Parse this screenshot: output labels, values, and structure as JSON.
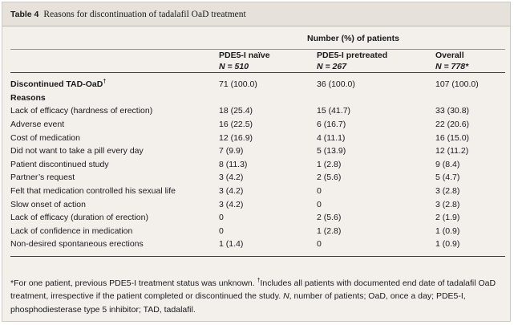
{
  "caption": {
    "label": "Table 4",
    "text": "Reasons for discontinuation of tadalafil OaD treatment"
  },
  "header": {
    "group_label": "Number (%) of patients",
    "columns": [
      {
        "name": "PDE5-I naïve",
        "n": "N = 510"
      },
      {
        "name": "PDE5-I pretreated",
        "n": "N = 267"
      },
      {
        "name": "Overall",
        "n": "N = 778*"
      }
    ]
  },
  "discontinued": {
    "label": "Discontinued TAD-OaD",
    "mark": "†",
    "values": [
      "71 (100.0)",
      "36 (100.0)",
      "107 (100.0)"
    ]
  },
  "reasons_heading": "Reasons",
  "rows": [
    {
      "label": "Lack of efficacy (hardness of erection)",
      "values": [
        "18 (25.4)",
        "15 (41.7)",
        "33 (30.8)"
      ]
    },
    {
      "label": "Adverse event",
      "values": [
        "16 (22.5)",
        "6 (16.7)",
        "22 (20.6)"
      ]
    },
    {
      "label": "Cost of medication",
      "values": [
        "12 (16.9)",
        "4 (11.1)",
        "16 (15.0)"
      ]
    },
    {
      "label": "Did not want to take a pill every day",
      "values": [
        "7 (9.9)",
        "5 (13.9)",
        "12 (11.2)"
      ]
    },
    {
      "label": "Patient discontinued study",
      "values": [
        "8 (11.3)",
        "1 (2.8)",
        "9 (8.4)"
      ]
    },
    {
      "label": "Partner’s request",
      "values": [
        "3 (4.2)",
        "2 (5.6)",
        "5 (4.7)"
      ]
    },
    {
      "label": "Felt that medication controlled his sexual life",
      "values": [
        "3 (4.2)",
        "0",
        "3 (2.8)"
      ]
    },
    {
      "label": "Slow onset of action",
      "values": [
        "3 (4.2)",
        "0",
        "3 (2.8)"
      ]
    },
    {
      "label": "Lack of efficacy (duration of erection)",
      "values": [
        "0",
        "2 (5.6)",
        "2 (1.9)"
      ]
    },
    {
      "label": "Lack of confidence in medication",
      "values": [
        "0",
        "1 (2.8)",
        "1 (0.9)"
      ]
    },
    {
      "label": "Non-desired spontaneous erections",
      "values": [
        "1 (1.4)",
        "0",
        "1 (0.9)"
      ]
    }
  ],
  "footnote": {
    "star": "*For one patient, previous PDE5-I treatment status was unknown. ",
    "dagger_mark": "†",
    "dagger_text": "Includes all patients with documented end date of tadalafil OaD treatment, irrespective if the patient completed or discontinued the study. ",
    "n_symbol": "N",
    "rest": ", number of patients; OaD, once a day; PDE5-I, phosphodiesterase type 5 inhibitor; TAD, tadalafil."
  }
}
